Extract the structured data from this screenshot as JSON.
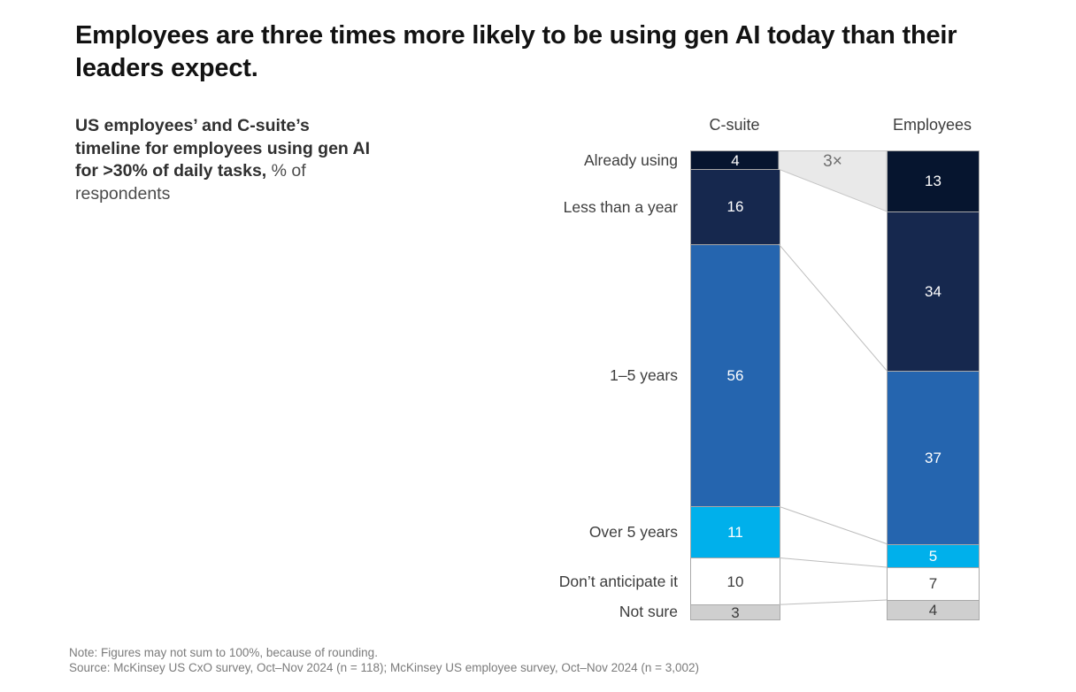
{
  "page": {
    "title": "Employees are three times more likely to be using gen AI today than their\nleaders expect.",
    "description_bold": "US employees’ and C-suite’s timeline for employees using gen AI for >30% of daily tasks,",
    "description_regular": " % of respondents",
    "note": "Note: Figures may not sum to 100%, because of rounding.",
    "source": "Source: McKinsey US CxO survey, Oct–Nov 2024 (n = 118); McKinsey US employee survey, Oct–Nov 2024 (n = 3,002)"
  },
  "chart_data": {
    "type": "bar",
    "subtype": "paired-100pct-stacked-columns-with-connectors",
    "title": "US employees’ and C-suite’s timeline for employees using gen AI for >30% of daily tasks, % of respondents",
    "categories": [
      "Already using",
      "Less than a year",
      "1–5 years",
      "Over 5 years",
      "Don’t anticipate it",
      "Not sure"
    ],
    "series": [
      {
        "name": "C-suite",
        "values": [
          4,
          16,
          56,
          11,
          10,
          3
        ]
      },
      {
        "name": "Employees",
        "values": [
          13,
          34,
          37,
          5,
          7,
          4
        ]
      }
    ],
    "annotation": "3×",
    "ylim": [
      0,
      100
    ],
    "grid": false,
    "legend_position": "category-labels-left-of-first-column",
    "colors": {
      "segments": [
        "#06152F",
        "#16284E",
        "#2565AF",
        "#00B0EB",
        "#FFFFFF",
        "#CFCFCF"
      ],
      "value_text": [
        "#FFFFFF",
        "#FFFFFF",
        "#FFFFFF",
        "#FFFFFF",
        "#3D3D3D",
        "#3D3D3D"
      ],
      "segment_border": "#A9A9A9",
      "ratio_band_fill": "#E9E9E9",
      "ratio_band_stroke": "#C6C6C6",
      "connector_line": "#BDBDBD"
    }
  }
}
